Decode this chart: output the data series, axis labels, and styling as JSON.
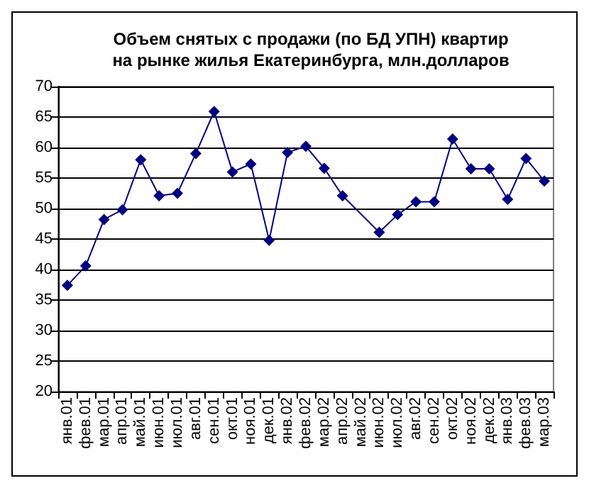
{
  "chart_data": {
    "type": "line",
    "title": "Объем снятых с продажи (по БД УПН) квартир\nна рынке жилья Екатеринбурга, млн.долларов",
    "categories": [
      "янв.01",
      "фев.01",
      "мар.01",
      "апр.01",
      "май.01",
      "июн.01",
      "июл.01",
      "авг.01",
      "сен.01",
      "окт.01",
      "ноя.01",
      "дек.01",
      "янв.02",
      "фев.02",
      "мар.02",
      "апр.02",
      "май.02",
      "июн.02",
      "июл.02",
      "авг.02",
      "сен.02",
      "окт.02",
      "ноя.02",
      "дек.02",
      "янв.03",
      "фев.03",
      "мар.03"
    ],
    "series": [
      {
        "color": "#000080",
        "values": [
          37.4,
          40.6,
          48.2,
          49.8,
          58.0,
          52.1,
          52.5,
          59.0,
          65.9,
          56.0,
          57.3,
          44.8,
          59.2,
          60.2,
          56.6,
          52.1,
          null,
          46.1,
          49.0,
          51.1,
          51.1,
          61.4,
          56.5,
          56.5,
          51.5,
          58.2,
          54.5
        ]
      }
    ],
    "ylim": [
      20,
      70
    ],
    "yticks": [
      20,
      25,
      30,
      35,
      40,
      45,
      50,
      55,
      60,
      65,
      70
    ],
    "grid": "y",
    "marker": "diamond",
    "line_style": "solid"
  }
}
